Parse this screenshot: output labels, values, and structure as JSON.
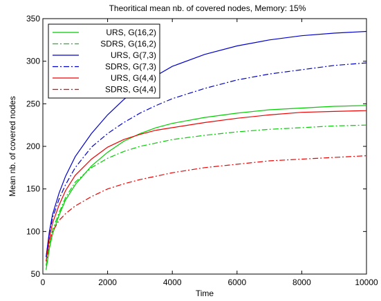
{
  "chart_data": {
    "type": "line",
    "title": "Theoritical mean nb. of covered nodes, Memory: 15%",
    "xlabel": "Time",
    "ylabel": "Mean nb. of covered nodes",
    "xlim": [
      0,
      10000
    ],
    "ylim": [
      50,
      350
    ],
    "xticks": [
      0,
      2000,
      4000,
      6000,
      8000,
      10000
    ],
    "yticks": [
      50,
      100,
      150,
      200,
      250,
      300,
      350
    ],
    "grid": false,
    "legend_position": "top-left",
    "x": [
      100,
      200,
      300,
      500,
      700,
      1000,
      1500,
      2000,
      2500,
      3000,
      3500,
      4000,
      5000,
      6000,
      7000,
      8000,
      9000,
      10000
    ],
    "series": [
      {
        "name": "URS, G(16,2)",
        "color": "#00cc00",
        "dash": "solid",
        "values": [
          55,
          80,
          97,
          119,
          137,
          155,
          177,
          193,
          206,
          215,
          222,
          227,
          234,
          239,
          243,
          245,
          247,
          248
        ]
      },
      {
        "name": "SDRS, G(16,2)",
        "color": "#00cc00",
        "dash": "dashdot",
        "values": [
          60,
          85,
          102,
          122,
          140,
          158,
          175,
          186,
          194,
          200,
          204,
          208,
          213,
          217,
          220,
          222,
          224,
          225
        ]
      },
      {
        "name": "URS, G(7,3)",
        "color": "#0000cc",
        "dash": "solid",
        "values": [
          70,
          100,
          120,
          145,
          165,
          188,
          215,
          237,
          255,
          270,
          283,
          294,
          308,
          318,
          325,
          330,
          333,
          335
        ]
      },
      {
        "name": "SDRS, G(7,3)",
        "color": "#0000cc",
        "dash": "dashdot",
        "values": [
          70,
          98,
          116,
          138,
          155,
          175,
          199,
          215,
          228,
          239,
          248,
          256,
          268,
          278,
          285,
          290,
          295,
          298
        ]
      },
      {
        "name": "URS, G(4,4)",
        "color": "#ee0000",
        "dash": "solid",
        "values": [
          65,
          92,
          110,
          131,
          148,
          166,
          185,
          199,
          208,
          214,
          219,
          222,
          228,
          233,
          237,
          240,
          241,
          242
        ]
      },
      {
        "name": "SDRS, G(4,4)",
        "color": "#ee0000",
        "dash": "dashdot",
        "values": [
          65,
          88,
          100,
          113,
          121,
          130,
          141,
          150,
          156,
          161,
          165,
          169,
          175,
          179,
          183,
          185,
          187,
          189
        ]
      }
    ]
  }
}
